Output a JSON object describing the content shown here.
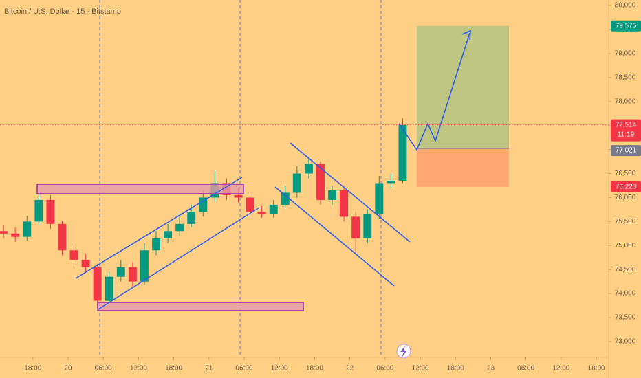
{
  "chart_data": {
    "type": "candlestick",
    "title": "Bitcoin / U.S. Dollar · 15 · Bitstamp",
    "x": [
      -11,
      -9,
      -7,
      -5,
      -3,
      -1,
      1,
      3,
      5,
      7,
      9,
      11,
      13,
      15,
      17,
      19,
      21,
      23,
      25,
      27,
      29,
      31,
      33,
      35,
      37,
      39,
      41,
      43,
      45,
      47,
      49,
      51,
      53,
      55,
      57
    ],
    "open": [
      75300,
      75250,
      75180,
      75500,
      75950,
      75450,
      74900,
      74700,
      74550,
      73850,
      74350,
      74550,
      74250,
      74900,
      75150,
      75300,
      75450,
      75700,
      76000,
      76300,
      76050,
      76000,
      75700,
      75650,
      75850,
      76100,
      76500,
      76700,
      75950,
      76150,
      75600,
      75150,
      75650,
      76300,
      76350
    ],
    "high": [
      75420,
      75380,
      75620,
      76100,
      76050,
      75520,
      75000,
      74820,
      74620,
      74450,
      74700,
      74650,
      75050,
      75300,
      75450,
      75650,
      75850,
      76150,
      76550,
      76400,
      76200,
      76080,
      75820,
      75950,
      76250,
      76650,
      76850,
      76750,
      76250,
      76250,
      75700,
      75750,
      76450,
      76500,
      77650
    ],
    "low": [
      75150,
      75080,
      75100,
      75420,
      75350,
      74800,
      74600,
      74450,
      73700,
      73800,
      74250,
      74150,
      74180,
      74800,
      75050,
      75200,
      75380,
      75600,
      75900,
      75950,
      75900,
      75600,
      75580,
      75580,
      75780,
      76000,
      76400,
      75850,
      75850,
      75500,
      74850,
      75050,
      75550,
      76200,
      76300
    ],
    "close": [
      75250,
      75180,
      75500,
      75950,
      75450,
      74900,
      74700,
      74550,
      73850,
      74350,
      74550,
      74250,
      74900,
      75150,
      75300,
      75450,
      75700,
      76000,
      76300,
      76050,
      76000,
      75700,
      75650,
      75850,
      76100,
      76500,
      76700,
      75950,
      76150,
      75600,
      75150,
      75650,
      76300,
      76350,
      77514
    ],
    "up_color": "#089981",
    "down_color": "#f23645",
    "xlim": [
      -11.6,
      92.1
    ],
    "xticks": [
      {
        "value": -6,
        "label": "18:00"
      },
      {
        "value": 0,
        "label": "20"
      },
      {
        "value": 6,
        "label": "06:00"
      },
      {
        "value": 12,
        "label": "12:00"
      },
      {
        "value": 18,
        "label": "18:00"
      },
      {
        "value": 24,
        "label": "21"
      },
      {
        "value": 30,
        "label": "06:00"
      },
      {
        "value": 36,
        "label": "12:00"
      },
      {
        "value": 42,
        "label": "18:00"
      },
      {
        "value": 48,
        "label": "22"
      },
      {
        "value": 54,
        "label": "06:00"
      },
      {
        "value": 60,
        "label": "12:00"
      },
      {
        "value": 66,
        "label": "18:00"
      },
      {
        "value": 72,
        "label": "23"
      },
      {
        "value": 78,
        "label": "06:00"
      },
      {
        "value": 84,
        "label": "12:00"
      },
      {
        "value": 90,
        "label": "18:00"
      }
    ],
    "ylim": [
      72670,
      80115
    ],
    "yticks": [
      {
        "value": 73000,
        "label": "73,000"
      },
      {
        "value": 73500,
        "label": "73,500"
      },
      {
        "value": 74000,
        "label": "74,000"
      },
      {
        "value": 74500,
        "label": "74,500"
      },
      {
        "value": 75000,
        "label": "75,000"
      },
      {
        "value": 75500,
        "label": "75,500"
      },
      {
        "value": 76000,
        "label": "76,000"
      },
      {
        "value": 76500,
        "label": "76,500"
      },
      {
        "value": 77000,
        "label": "77,000"
      },
      {
        "value": 77500,
        "label": "77,500"
      },
      {
        "value": 78000,
        "label": "78,000"
      },
      {
        "value": 78500,
        "label": "78,500"
      },
      {
        "value": 79000,
        "label": "79,000"
      },
      {
        "value": 79500,
        "label": "79,500"
      },
      {
        "value": 80000,
        "label": "80,000"
      }
    ],
    "last_price": {
      "value": 77514,
      "label": "77,514",
      "countdown": "11:19"
    },
    "position": {
      "target": {
        "value": 79575,
        "label": "79,575"
      },
      "entry": {
        "value": 77021,
        "label": "77,021"
      },
      "stop": {
        "value": 76223,
        "label": "76,223"
      }
    }
  }
}
